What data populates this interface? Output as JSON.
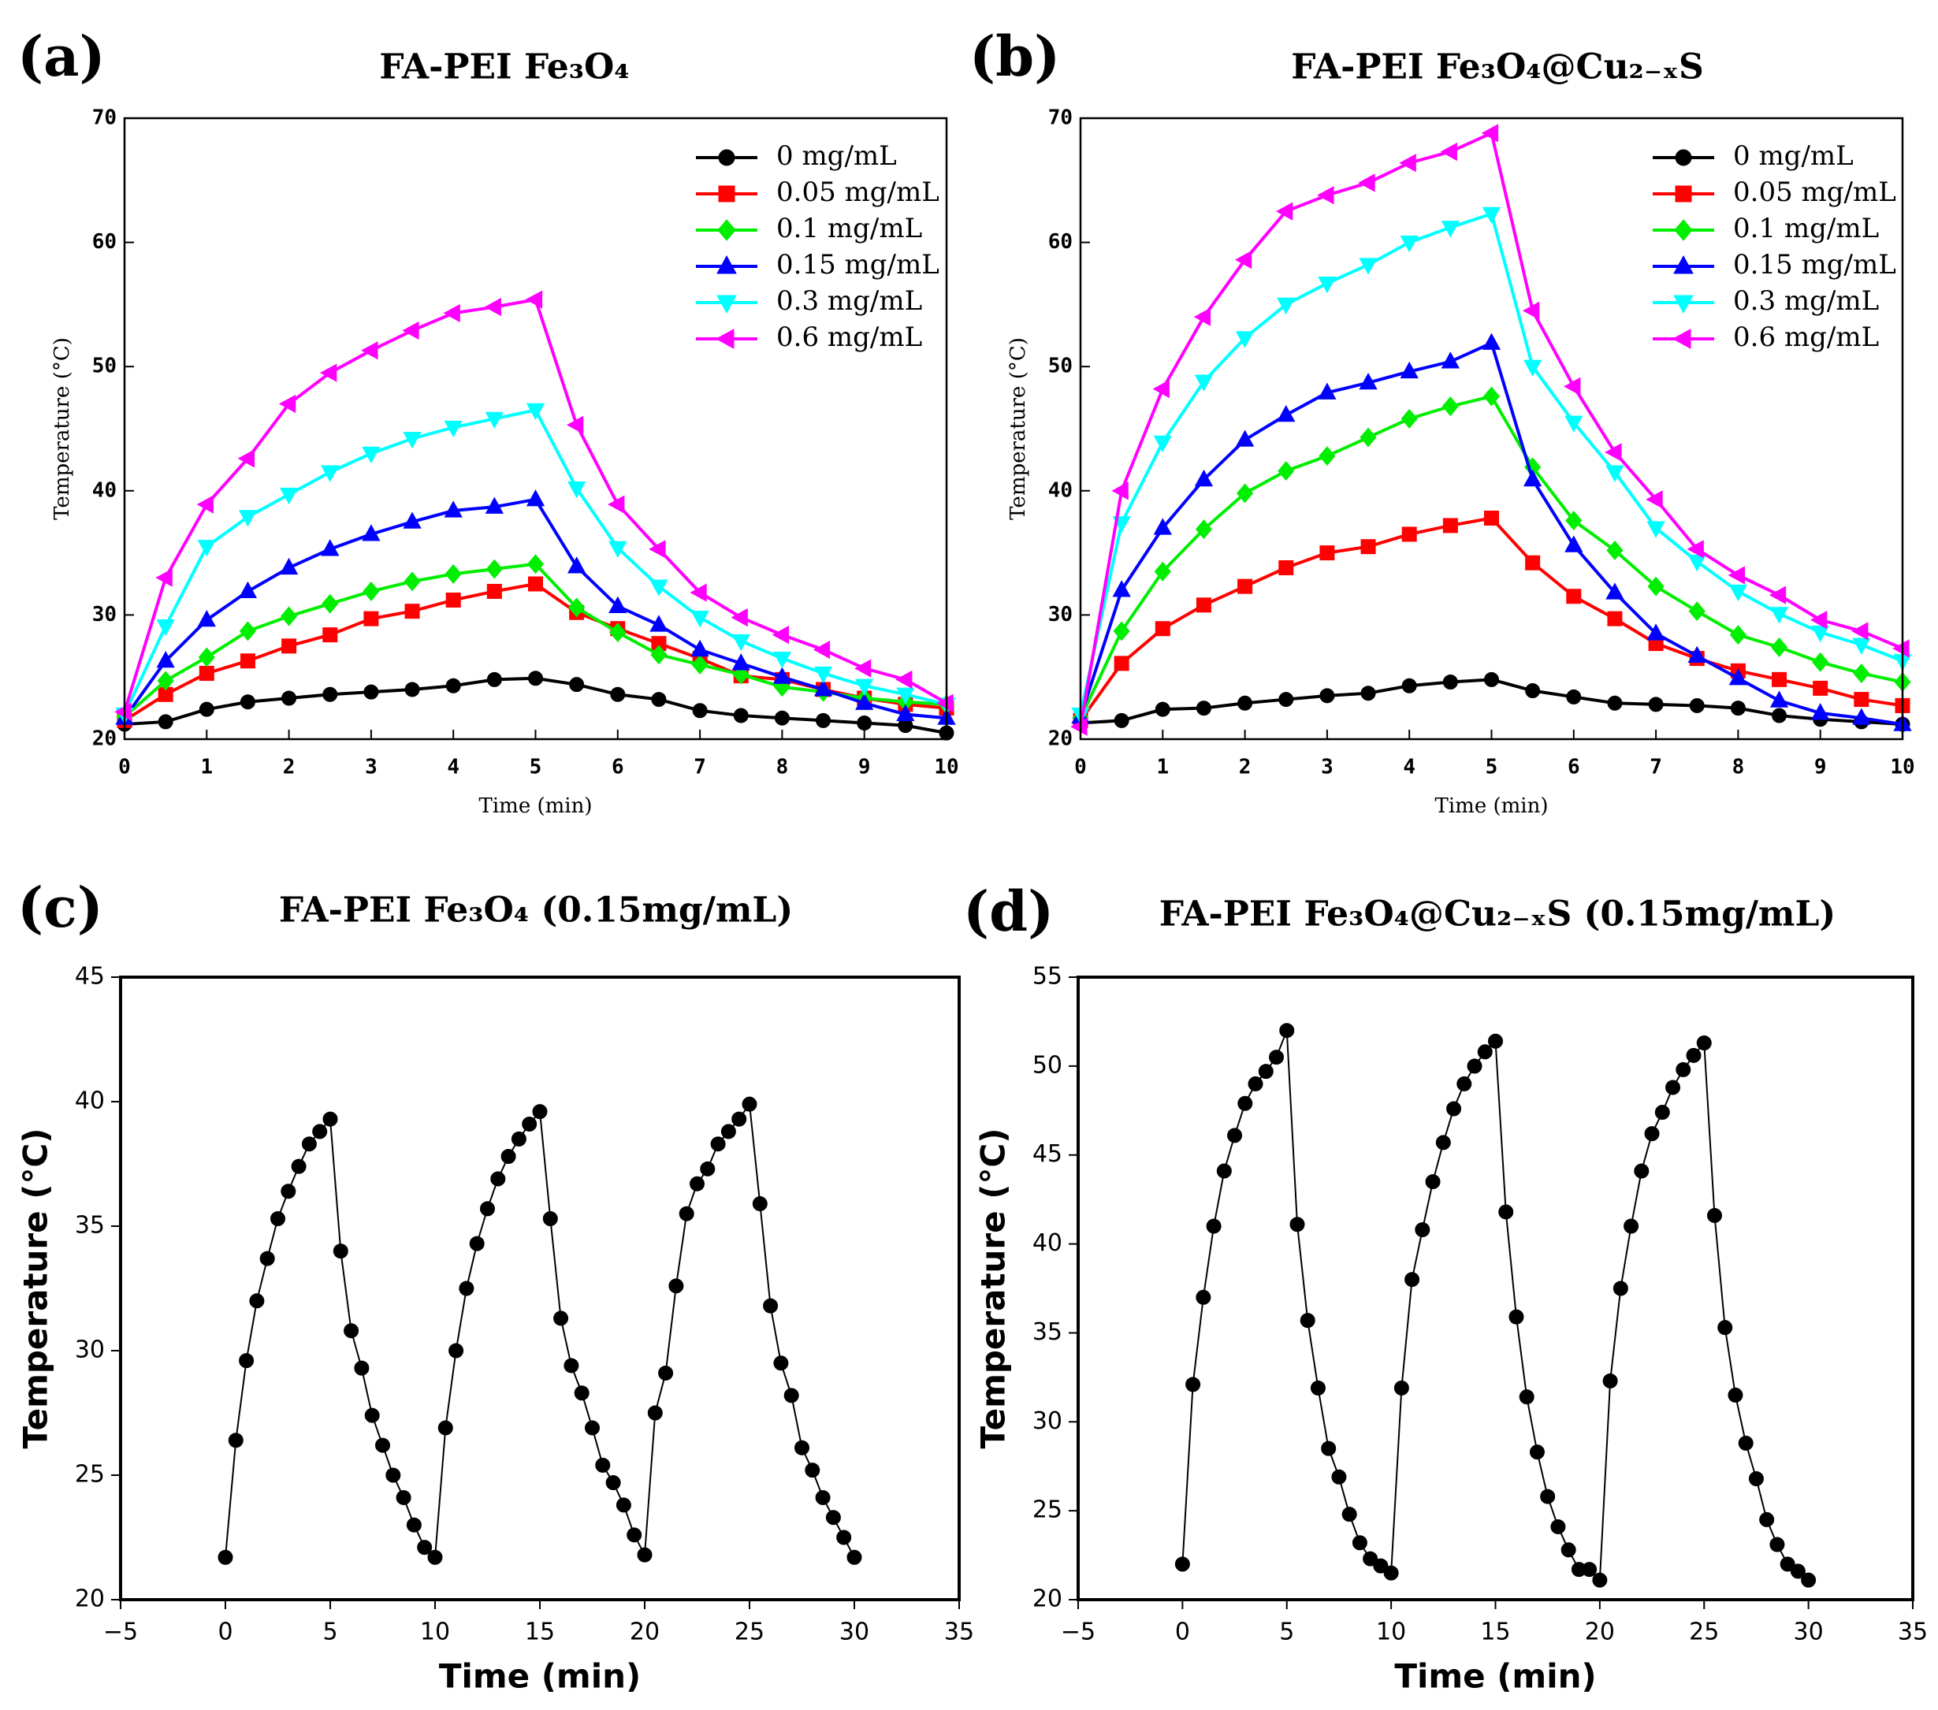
{
  "chart_data": [
    {
      "type": "line",
      "panel_label": "(a)",
      "title": "FA-PEI Fe₃O₄",
      "x_label": "Time (min)",
      "y_label": "Temperature (°C)",
      "x": [
        0,
        0.5,
        1,
        1.5,
        2,
        2.5,
        3,
        3.5,
        4,
        4.5,
        5,
        5.5,
        6,
        6.5,
        7,
        7.5,
        8,
        8.5,
        9,
        9.5,
        10
      ],
      "xlim": [
        0,
        10
      ],
      "xticks": [
        0,
        1,
        2,
        3,
        4,
        5,
        6,
        7,
        8,
        9,
        10
      ],
      "ylim": [
        20,
        70
      ],
      "yticks": [
        20,
        30,
        40,
        50,
        60,
        70
      ],
      "legend": "upper right",
      "series": [
        {
          "name": "0 mg/mL",
          "color": "#000000",
          "marker": "circle",
          "values": [
            21.2,
            21.4,
            22.4,
            23,
            23.3,
            23.6,
            23.8,
            24,
            24.3,
            24.8,
            24.9,
            24.4,
            23.6,
            23.2,
            22.3,
            21.9,
            21.7,
            21.5,
            21.3,
            21.1,
            20.5
          ]
        },
        {
          "name": "0.05 mg/mL",
          "color": "#ff0000",
          "marker": "square",
          "values": [
            21.5,
            23.6,
            25.3,
            26.3,
            27.5,
            28.4,
            29.7,
            30.3,
            31.2,
            31.9,
            32.5,
            30.2,
            28.9,
            27.7,
            26.5,
            25.1,
            24.8,
            24,
            23.3,
            22.8,
            22.5
          ]
        },
        {
          "name": "0.1 mg/mL",
          "color": "#00ee00",
          "marker": "diamond",
          "values": [
            21.8,
            24.7,
            26.6,
            28.7,
            29.9,
            30.9,
            31.9,
            32.7,
            33.3,
            33.7,
            34.1,
            30.6,
            28.6,
            26.8,
            26,
            25.2,
            24.2,
            23.8,
            23.3,
            23,
            22.8
          ]
        },
        {
          "name": "0.15 mg/mL",
          "color": "#0000ff",
          "marker": "triangle-up",
          "values": [
            21.7,
            26.3,
            29.6,
            31.9,
            33.8,
            35.3,
            36.5,
            37.5,
            38.4,
            38.7,
            39.3,
            33.9,
            30.7,
            29.2,
            27.2,
            26.1,
            25,
            24,
            22.9,
            22,
            21.7
          ]
        },
        {
          "name": "0.3 mg/mL",
          "color": "#00ffff",
          "marker": "triangle-down",
          "values": [
            22,
            29.1,
            35.5,
            37.9,
            39.7,
            41.5,
            43,
            44.2,
            45.1,
            45.8,
            46.5,
            40.2,
            35.4,
            32.3,
            29.8,
            27.9,
            26.5,
            25.3,
            24.3,
            23.6,
            22.8
          ]
        },
        {
          "name": "0.6 mg/mL",
          "color": "#ff00ff",
          "marker": "triangle-left",
          "values": [
            22.2,
            33,
            38.9,
            42.6,
            47,
            49.5,
            51.3,
            52.9,
            54.3,
            54.8,
            55.4,
            45.3,
            38.9,
            35.3,
            31.8,
            29.8,
            28.4,
            27.2,
            25.7,
            24.8,
            22.9
          ]
        }
      ]
    },
    {
      "type": "line",
      "panel_label": "(b)",
      "title": "FA-PEI Fe₃O₄@Cu₂₋ₓS",
      "x_label": "Time (min)",
      "y_label": "Temperature (°C)",
      "x": [
        0,
        0.5,
        1,
        1.5,
        2,
        2.5,
        3,
        3.5,
        4,
        4.5,
        5,
        5.5,
        6,
        6.5,
        7,
        7.5,
        8,
        8.5,
        9,
        9.5,
        10
      ],
      "xlim": [
        0,
        10
      ],
      "xticks": [
        0,
        1,
        2,
        3,
        4,
        5,
        6,
        7,
        8,
        9,
        10
      ],
      "ylim": [
        20,
        70
      ],
      "yticks": [
        20,
        30,
        40,
        50,
        60,
        70
      ],
      "legend": "upper right",
      "series": [
        {
          "name": "0 mg/mL",
          "color": "#000000",
          "marker": "circle",
          "values": [
            21.3,
            21.5,
            22.4,
            22.5,
            22.9,
            23.2,
            23.5,
            23.7,
            24.3,
            24.6,
            24.8,
            23.9,
            23.4,
            22.9,
            22.8,
            22.7,
            22.5,
            21.9,
            21.6,
            21.4,
            21.2
          ]
        },
        {
          "name": "0.05 mg/mL",
          "color": "#ff0000",
          "marker": "square",
          "values": [
            21.5,
            26.1,
            28.9,
            30.8,
            32.3,
            33.8,
            35,
            35.5,
            36.5,
            37.2,
            37.8,
            34.2,
            31.5,
            29.7,
            27.7,
            26.5,
            25.5,
            24.8,
            24.1,
            23.2,
            22.7
          ]
        },
        {
          "name": "0.1 mg/mL",
          "color": "#00ee00",
          "marker": "diamond",
          "values": [
            21.7,
            28.7,
            33.5,
            36.9,
            39.8,
            41.6,
            42.8,
            44.3,
            45.8,
            46.8,
            47.6,
            41.9,
            37.6,
            35.2,
            32.3,
            30.3,
            28.4,
            27.4,
            26.2,
            25.3,
            24.6
          ]
        },
        {
          "name": "0.15 mg/mL",
          "color": "#0000ff",
          "marker": "triangle-up",
          "values": [
            21.8,
            32,
            37,
            40.9,
            44.1,
            46.1,
            47.9,
            48.7,
            49.6,
            50.4,
            51.9,
            40.9,
            35.6,
            31.8,
            28.5,
            26.7,
            24.9,
            23.1,
            22.1,
            21.7,
            21.2
          ]
        },
        {
          "name": "0.3 mg/mL",
          "color": "#00ffff",
          "marker": "triangle-down",
          "values": [
            22,
            37.4,
            43.9,
            48.8,
            52.3,
            55,
            56.7,
            58.2,
            60,
            61.2,
            62.3,
            50,
            45.5,
            41.5,
            37,
            34.3,
            31.9,
            30.1,
            28.6,
            27.6,
            26.3
          ]
        },
        {
          "name": "0.6 mg/mL",
          "color": "#ff00ff",
          "marker": "triangle-left",
          "values": [
            21,
            40,
            48.2,
            54,
            58.6,
            62.5,
            63.8,
            64.8,
            66.4,
            67.3,
            68.8,
            54.5,
            48.4,
            43.1,
            39.3,
            35.3,
            33.2,
            31.6,
            29.6,
            28.7,
            27.3
          ]
        }
      ]
    },
    {
      "type": "line",
      "panel_label": "(c)",
      "title": "FA-PEI Fe₃O₄ (0.15mg/mL)",
      "x_label": "Time (min)",
      "y_label": "Temperature (°C)",
      "x": [
        0,
        0.5,
        1,
        1.5,
        2,
        2.5,
        3,
        3.5,
        4,
        4.5,
        5,
        5.5,
        6,
        6.5,
        7,
        7.5,
        8,
        8.5,
        9,
        9.5,
        10,
        10.5,
        11,
        11.5,
        12,
        12.5,
        13,
        13.5,
        14,
        14.5,
        15,
        15.5,
        16,
        16.5,
        17,
        17.5,
        18,
        18.5,
        19,
        19.5,
        20,
        20.5,
        21,
        21.5,
        22,
        22.5,
        23,
        23.5,
        24,
        24.5,
        25,
        25.5,
        26,
        26.5,
        27,
        27.5,
        28,
        28.5,
        29,
        29.5,
        30
      ],
      "xlim": [
        -5,
        35
      ],
      "xticks": [
        {
          "value": -5,
          "label": "−5"
        },
        0,
        5,
        10,
        15,
        20,
        25,
        30,
        35
      ],
      "ylim": [
        20,
        45
      ],
      "yticks": [
        20,
        25,
        30,
        35,
        40,
        45
      ],
      "series": [
        {
          "color": "#000000",
          "marker": "circle",
          "values": [
            21.7,
            26.4,
            29.6,
            32,
            33.7,
            35.3,
            36.4,
            37.4,
            38.3,
            38.8,
            39.3,
            34,
            30.8,
            29.3,
            27.4,
            26.2,
            25,
            24.1,
            23,
            22.1,
            21.7,
            26.9,
            30,
            32.5,
            34.3,
            35.7,
            36.9,
            37.8,
            38.5,
            39.1,
            39.6,
            35.3,
            31.3,
            29.4,
            28.3,
            26.9,
            25.4,
            24.7,
            23.8,
            22.6,
            21.8,
            27.5,
            29.1,
            32.6,
            35.5,
            36.7,
            37.3,
            38.3,
            38.8,
            39.3,
            39.9,
            35.9,
            31.8,
            29.5,
            28.2,
            26.1,
            25.2,
            24.1,
            23.3,
            22.5,
            21.7
          ]
        }
      ]
    },
    {
      "type": "line",
      "panel_label": "(d)",
      "title": "FA-PEI  Fe₃O₄@Cu₂₋ₓS (0.15mg/mL)",
      "x_label": "Time (min)",
      "y_label": "Temperature (°C)",
      "x": [
        0,
        0.5,
        1,
        1.5,
        2,
        2.5,
        3,
        3.5,
        4,
        4.5,
        5,
        5.5,
        6,
        6.5,
        7,
        7.5,
        8,
        8.5,
        9,
        9.5,
        10,
        10.5,
        11,
        11.5,
        12,
        12.5,
        13,
        13.5,
        14,
        14.5,
        15,
        15.5,
        16,
        16.5,
        17,
        17.5,
        18,
        18.5,
        19,
        19.5,
        20,
        20.5,
        21,
        21.5,
        22,
        22.5,
        23,
        23.5,
        24,
        24.5,
        25,
        25.5,
        26,
        26.5,
        27,
        27.5,
        28,
        28.5,
        29,
        29.5,
        30
      ],
      "xlim": [
        -5,
        35
      ],
      "xticks": [
        {
          "value": -5,
          "label": "−5"
        },
        0,
        5,
        10,
        15,
        20,
        25,
        30,
        35
      ],
      "ylim": [
        20,
        55
      ],
      "yticks": [
        20,
        25,
        30,
        35,
        40,
        45,
        50,
        55
      ],
      "series": [
        {
          "color": "#000000",
          "marker": "circle",
          "values": [
            22,
            32.1,
            37,
            41,
            44.1,
            46.1,
            47.9,
            49,
            49.7,
            50.5,
            52,
            41.1,
            35.7,
            31.9,
            28.5,
            26.9,
            24.8,
            23.2,
            22.3,
            21.9,
            21.5,
            31.9,
            38,
            40.8,
            43.5,
            45.7,
            47.6,
            49,
            50,
            50.8,
            51.4,
            41.8,
            35.9,
            31.4,
            28.3,
            25.8,
            24.1,
            22.8,
            21.7,
            21.7,
            21.1,
            32.3,
            37.5,
            41,
            44.1,
            46.2,
            47.4,
            48.8,
            49.8,
            50.6,
            51.3,
            41.6,
            35.3,
            31.5,
            28.8,
            26.8,
            24.5,
            23.1,
            22,
            21.6,
            21.1
          ]
        }
      ]
    }
  ]
}
